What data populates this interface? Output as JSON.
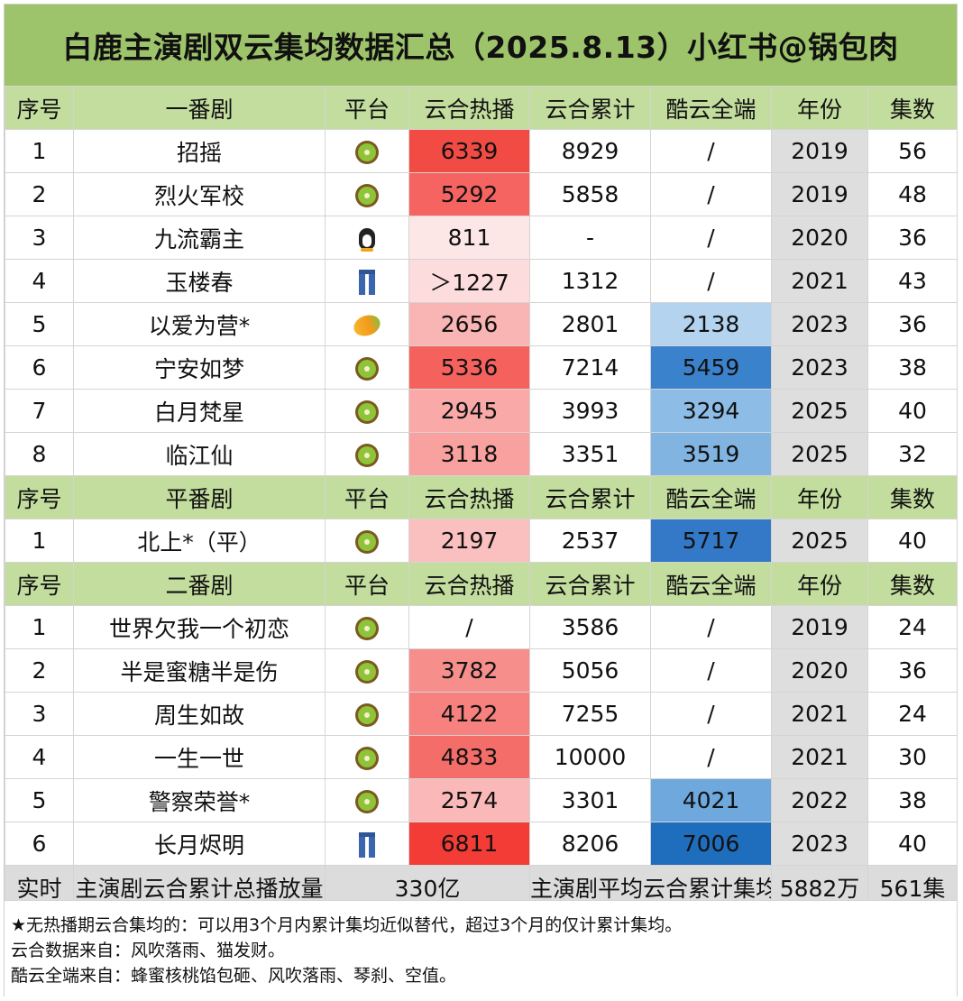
{
  "title": "白鹿主演剧双云集均数据汇总（2025.8.13）小红书@锅包肉",
  "colors": {
    "title_bg": "#9dc46a",
    "header_bg": "#c3dd9e",
    "year_bg": "#dedede",
    "summary_bg": "#dcdcdc",
    "summary_red": "#d12b2b"
  },
  "sections": [
    {
      "header": [
        "序号",
        "一番剧",
        "平台",
        "云合热播",
        "云合累计",
        "酷云全端",
        "年份",
        "集数"
      ],
      "rows": [
        {
          "seq": "1",
          "name": "招摇",
          "platform": "kiwi-icon",
          "hot": "6339",
          "hot_color": "#f24b44",
          "cum": "8929",
          "ky": "/",
          "ky_color": "#ffffff",
          "year": "2019",
          "eps": "56"
        },
        {
          "seq": "2",
          "name": "烈火军校",
          "platform": "kiwi-icon",
          "hot": "5292",
          "hot_color": "#f56460",
          "cum": "5858",
          "ky": "/",
          "ky_color": "#ffffff",
          "year": "2019",
          "eps": "48"
        },
        {
          "seq": "3",
          "name": "九流霸主",
          "platform": "penguin-icon",
          "hot": "811",
          "hot_color": "#fde6e6",
          "cum": "-",
          "ky": "/",
          "ky_color": "#ffffff",
          "year": "2020",
          "eps": "36"
        },
        {
          "seq": "4",
          "name": "玉楼春",
          "platform": "jeans-icon",
          "hot": "＞1227",
          "hot_color": "#fcdcdc",
          "cum": "1312",
          "ky": "/",
          "ky_color": "#ffffff",
          "year": "2021",
          "eps": "43"
        },
        {
          "seq": "5",
          "name": "以爱为营*",
          "platform": "mango-icon",
          "hot": "2656",
          "hot_color": "#f9b5b4",
          "cum": "2801",
          "ky": "2138",
          "ky_color": "#b3d3ef",
          "year": "2023",
          "eps": "36"
        },
        {
          "seq": "6",
          "name": "宁安如梦",
          "platform": "kiwi-icon",
          "hot": "5336",
          "hot_color": "#f5625e",
          "cum": "7214",
          "ky": "5459",
          "ky_color": "#3b82cc",
          "year": "2023",
          "eps": "38"
        },
        {
          "seq": "7",
          "name": "白月梵星",
          "platform": "kiwi-icon",
          "hot": "2945",
          "hot_color": "#f8a9a8",
          "cum": "3993",
          "ky": "3294",
          "ky_color": "#8dbce6",
          "year": "2025",
          "eps": "40"
        },
        {
          "seq": "8",
          "name": "临江仙",
          "platform": "kiwi-icon",
          "hot": "3118",
          "hot_color": "#f8a19f",
          "cum": "3351",
          "ky": "3519",
          "ky_color": "#82b4e2",
          "year": "2025",
          "eps": "32"
        }
      ]
    },
    {
      "header": [
        "序号",
        "平番剧",
        "平台",
        "云合热播",
        "云合累计",
        "酷云全端",
        "年份",
        "集数"
      ],
      "rows": [
        {
          "seq": "1",
          "name": "北上*（平）",
          "platform": "kiwi-icon",
          "hot": "2197",
          "hot_color": "#fac0bf",
          "cum": "2537",
          "ky": "5717",
          "ky_color": "#3479c8",
          "year": "2025",
          "eps": "40"
        }
      ]
    },
    {
      "header": [
        "序号",
        "二番剧",
        "平台",
        "云合热播",
        "云合累计",
        "酷云全端",
        "年份",
        "集数"
      ],
      "rows": [
        {
          "seq": "1",
          "name": "世界欠我一个初恋",
          "platform": "kiwi-icon",
          "hot": "/",
          "hot_color": "#ffffff",
          "cum": "3586",
          "ky": "/",
          "ky_color": "#ffffff",
          "year": "2019",
          "eps": "24"
        },
        {
          "seq": "2",
          "name": "半是蜜糖半是伤",
          "platform": "kiwi-icon",
          "hot": "3782",
          "hot_color": "#f68f8c",
          "cum": "5056",
          "ky": "/",
          "ky_color": "#ffffff",
          "year": "2020",
          "eps": "36"
        },
        {
          "seq": "3",
          "name": "周生如故",
          "platform": "kiwi-icon",
          "hot": "4122",
          "hot_color": "#f6817e",
          "cum": "7255",
          "ky": "/",
          "ky_color": "#ffffff",
          "year": "2021",
          "eps": "24"
        },
        {
          "seq": "4",
          "name": "一生一世",
          "platform": "kiwi-icon",
          "hot": "4833",
          "hot_color": "#f56d69",
          "cum": "10000",
          "ky": "/",
          "ky_color": "#ffffff",
          "year": "2021",
          "eps": "30"
        },
        {
          "seq": "5",
          "name": "警察荣誉*",
          "platform": "kiwi-icon",
          "hot": "2574",
          "hot_color": "#fab9b8",
          "cum": "3301",
          "ky": "4021",
          "ky_color": "#6ea8dd",
          "year": "2022",
          "eps": "38"
        },
        {
          "seq": "6",
          "name": "长月烬明",
          "platform": "jeans-icon",
          "hot": "6811",
          "hot_color": "#f23c35",
          "cum": "8206",
          "ky": "7006",
          "ky_color": "#1f6dbd",
          "year": "2023",
          "eps": "40"
        }
      ]
    }
  ],
  "summary": {
    "label": "实时",
    "total_label": "主演剧云合累计总播放量",
    "total_value": "330亿",
    "avg_label": "主演剧平均云合累计集均",
    "avg_value": "5882万",
    "episodes": "561集"
  },
  "notes": [
    "★无热播期云合集均的：可以用3个月内累计集均近似替代，超过3个月的仅计累计集均。",
    "云合数据来自：风吹落雨、猫发财。",
    "酷云全端来自：蜂蜜核桃馅包砸、风吹落雨、琴刹、空值。"
  ]
}
